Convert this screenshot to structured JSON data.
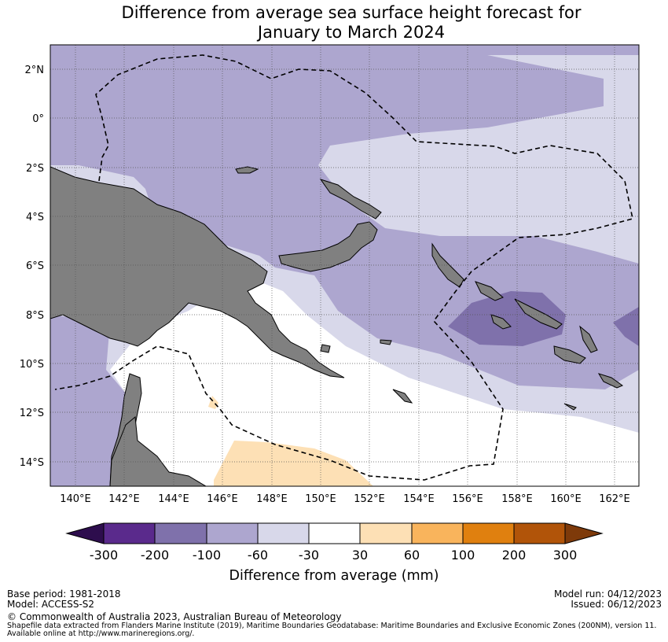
{
  "title": {
    "line1": "Difference from average sea surface height forecast for",
    "line2": "January to March 2024"
  },
  "map": {
    "lat_labels": [
      "2°N",
      "0°",
      "2°S",
      "4°S",
      "6°S",
      "8°S",
      "10°S",
      "12°S",
      "14°S"
    ],
    "lon_labels": [
      "140°E",
      "142°E",
      "144°E",
      "146°E",
      "148°E",
      "150°E",
      "152°E",
      "154°E",
      "156°E",
      "158°E",
      "160°E",
      "162°E"
    ],
    "extent": {
      "lon_min": 139,
      "lon_max": 163,
      "lat_min": -15,
      "lat_max": 3
    },
    "land_icon": "land-mass",
    "eez_icon": "eez-boundary-dashed"
  },
  "legend": {
    "ticks": [
      "-300",
      "-200",
      "-100",
      "-60",
      "-30",
      "30",
      "60",
      "100",
      "200",
      "300"
    ],
    "colors": [
      "#2d0d4d",
      "#5a2a8c",
      "#7f71ab",
      "#ada6cf",
      "#d8d8ea",
      "#ffffff",
      "#fde0b5",
      "#f9b45c",
      "#e0800f",
      "#b15409",
      "#7e3a0a"
    ],
    "label": "Difference from average (mm)"
  },
  "footer": {
    "base_period": "Base period: 1981-2018",
    "model": "Model: ACCESS-S2",
    "model_run": "Model run: 04/12/2023",
    "issued": "Issued: 06/12/2023",
    "copyright": "© Commonwealth of Australia 2023, Australian Bureau of Meteorology",
    "shapefile_line1": "Shapefile data extracted from Flanders Marine Institute (2019), Maritime Boundaries Geodatabase: Maritime Boundaries and Exclusive Economic Zones (200NM), version 11.",
    "shapefile_line2": "Available online at http://www.marineregions.org/."
  }
}
